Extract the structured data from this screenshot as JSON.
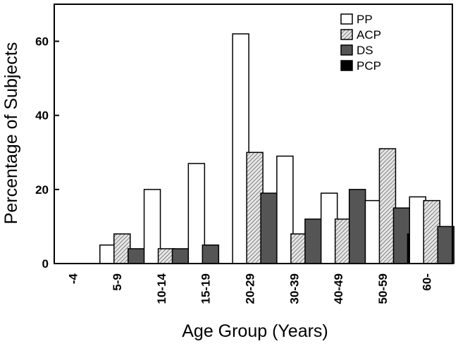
{
  "chart_data": {
    "type": "bar",
    "title": "",
    "xlabel": "Age Group (Years)",
    "ylabel": "Percentage of Subjects",
    "ylim": [
      0,
      70
    ],
    "yticks": [
      "0",
      "20",
      "40",
      "60"
    ],
    "grid": false,
    "legend_position": "top-right",
    "categories": [
      "-4",
      "5-9",
      "10-14",
      "15-19",
      "20-29",
      "30-39",
      "40-49",
      "50-59",
      "60-"
    ],
    "series": [
      {
        "name": "PP",
        "fill": "white",
        "values": [
          0,
          5,
          20,
          27,
          62,
          29,
          19,
          17,
          18
        ]
      },
      {
        "name": "ACP",
        "fill": "hatched",
        "values": [
          0,
          8,
          4,
          0,
          30,
          8,
          12,
          31,
          17
        ]
      },
      {
        "name": "DS",
        "fill": "#555555",
        "values": [
          0,
          4,
          4,
          5,
          19,
          12,
          20,
          15,
          10
        ]
      },
      {
        "name": "PCP",
        "fill": "#000000",
        "values": [
          0,
          0,
          0,
          0,
          0,
          0,
          0,
          8,
          0
        ]
      }
    ]
  }
}
